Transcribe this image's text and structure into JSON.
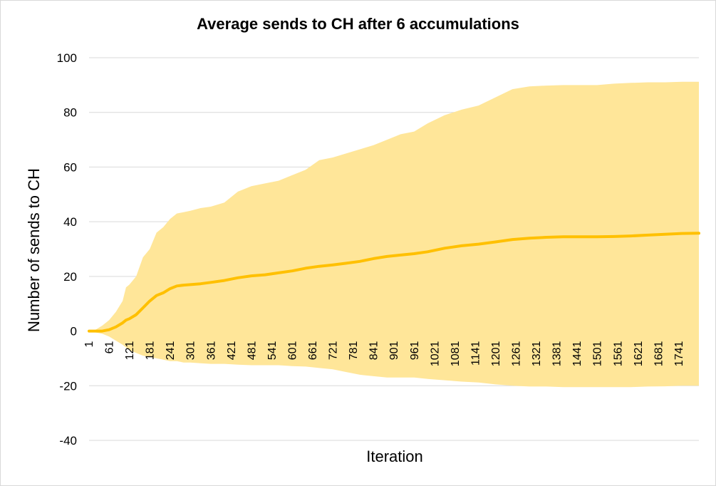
{
  "chart_data": {
    "type": "area",
    "title": "Average sends to CH after 6 accumulations",
    "xlabel": "Iteration",
    "ylabel": "Number of sends to CH",
    "ylim": [
      -40,
      100
    ],
    "yticks": [
      100,
      80,
      60,
      40,
      20,
      0,
      -20,
      -40
    ],
    "xlim": [
      1,
      1800
    ],
    "xticks": [
      1,
      61,
      121,
      181,
      241,
      301,
      361,
      421,
      481,
      541,
      601,
      661,
      721,
      781,
      841,
      901,
      961,
      1021,
      1081,
      1141,
      1201,
      1261,
      1321,
      1381,
      1441,
      1501,
      1561,
      1621,
      1681,
      1741
    ],
    "grid": true,
    "legend": "none",
    "colors": {
      "mean": "#ffc000",
      "band": "#ffe699"
    },
    "series": [
      {
        "x": [
          1,
          20,
          40,
          60,
          80,
          100,
          110,
          120,
          140,
          160,
          180,
          200,
          220,
          240,
          260,
          280,
          300,
          330,
          360,
          400,
          440,
          480,
          520,
          560,
          600,
          640,
          680,
          720,
          760,
          800,
          840,
          880,
          920,
          960,
          1000,
          1050,
          1100,
          1150,
          1200,
          1250,
          1300,
          1350,
          1400,
          1450,
          1500,
          1550,
          1600,
          1650,
          1700,
          1750,
          1800
        ],
        "values": [
          0,
          0,
          0,
          0.5,
          1.5,
          3,
          4,
          4.5,
          6,
          8.5,
          11,
          13,
          14,
          15.5,
          16.5,
          16.8,
          17,
          17.3,
          17.8,
          18.5,
          19.5,
          20.2,
          20.6,
          21.3,
          22,
          23,
          23.7,
          24.2,
          24.8,
          25.5,
          26.5,
          27.3,
          27.8,
          28.3,
          29,
          30.3,
          31.2,
          31.8,
          32.6,
          33.5,
          34,
          34.3,
          34.5,
          34.5,
          34.5,
          34.6,
          34.8,
          35.1,
          35.4,
          35.7,
          35.8
        ]
      },
      {
        "x": [
          1,
          20,
          40,
          60,
          80,
          100,
          110,
          120,
          140,
          160,
          180,
          200,
          220,
          240,
          260,
          280,
          300,
          330,
          360,
          400,
          440,
          480,
          520,
          560,
          600,
          640,
          680,
          720,
          760,
          800,
          840,
          880,
          920,
          960,
          1000,
          1050,
          1100,
          1150,
          1200,
          1250,
          1300,
          1350,
          1400,
          1450,
          1500,
          1550,
          1600,
          1650,
          1700,
          1750,
          1800
        ],
        "values": [
          0,
          0.5,
          2,
          4,
          7,
          11,
          16,
          17,
          20,
          27,
          30,
          36,
          38,
          41,
          43,
          43.5,
          44,
          45,
          45.5,
          47,
          51,
          53,
          54,
          55,
          57,
          59,
          62.5,
          63.5,
          65,
          66.5,
          68,
          70,
          72,
          73,
          76,
          79,
          81,
          82.5,
          85.5,
          88.5,
          89.5,
          89.8,
          90,
          90,
          90,
          90.5,
          90.8,
          91,
          91,
          91.2,
          91.2
        ]
      },
      {
        "x": [
          1,
          20,
          40,
          60,
          80,
          100,
          110,
          120,
          140,
          160,
          180,
          200,
          220,
          240,
          260,
          280,
          300,
          330,
          360,
          400,
          440,
          480,
          520,
          560,
          600,
          640,
          680,
          720,
          760,
          800,
          840,
          880,
          920,
          960,
          1000,
          1050,
          1100,
          1150,
          1200,
          1250,
          1300,
          1350,
          1400,
          1450,
          1500,
          1550,
          1600,
          1650,
          1700,
          1750,
          1800
        ],
        "values": [
          0,
          -0.5,
          -1,
          -2,
          -3.5,
          -5,
          -6,
          -7,
          -8,
          -9,
          -9.5,
          -10,
          -10.5,
          -11,
          -11,
          -11.5,
          -11.5,
          -11.8,
          -12,
          -12,
          -12.3,
          -12.5,
          -12.5,
          -12.5,
          -12.8,
          -13,
          -13.5,
          -14,
          -15,
          -16,
          -16.5,
          -17,
          -17,
          -17,
          -17.5,
          -18,
          -18.5,
          -18.8,
          -19.5,
          -20,
          -20.3,
          -20.3,
          -20.5,
          -20.5,
          -20.5,
          -20.5,
          -20.5,
          -20.3,
          -20.2,
          -20,
          -20
        ]
      }
    ]
  }
}
